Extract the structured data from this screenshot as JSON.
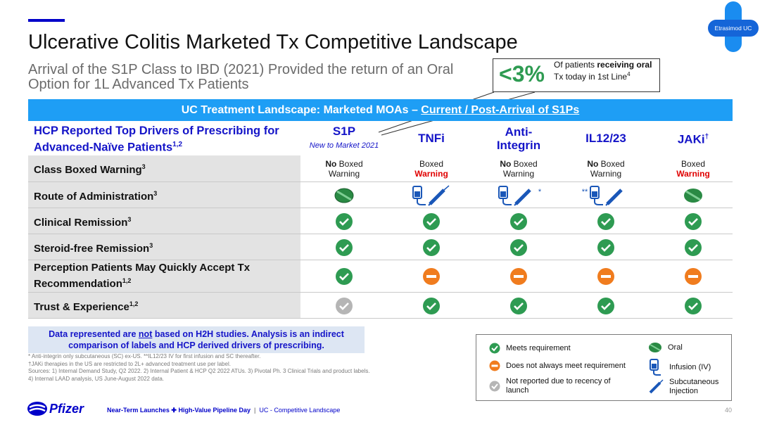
{
  "title": "Ulcerative Colitis Marketed Tx Competitive Landscape",
  "subtitle": "Arrival of the S1P Class to IBD (2021) Provided the return of an Oral Option for 1L Advanced Tx Patients",
  "brand_badge": "Etrasimod UC",
  "callout": {
    "value": "<3%",
    "text_pre": "Of patients ",
    "text_bold1": "receiving oral",
    "text_mid": " Tx today in 1st Line",
    "text_sup": "4"
  },
  "banner": {
    "text_a": "UC Treatment Landscape: Marketed MOAs – ",
    "text_b": "Current / Post-Arrival of S1Ps"
  },
  "table": {
    "header_left": "HCP Reported Top Drivers of Prescribing for Advanced-Naïve Patients",
    "header_left_sup": "1,2",
    "columns": [
      {
        "label": "S1P",
        "sub": "New to Market 2021"
      },
      {
        "label": "TNFi",
        "sub": ""
      },
      {
        "label": "Anti-Integrin",
        "sub": ""
      },
      {
        "label": "IL12/23",
        "sub": ""
      },
      {
        "label": "JAKi",
        "sub": "",
        "sup": "†"
      }
    ],
    "rows": [
      {
        "label": "Class Boxed Warning",
        "sup": "3"
      },
      {
        "label": "Route of Administration",
        "sup": "3"
      },
      {
        "label": "Clinical Remission",
        "sup": "3"
      },
      {
        "label": "Steroid-free Remission",
        "sup": "3"
      },
      {
        "label": "Perception Patients May Quickly Accept Tx Recommendation",
        "sup": "1,2"
      },
      {
        "label": "Trust & Experience",
        "sup": "1,2"
      }
    ],
    "boxed_warning": {
      "no": "No",
      "boxed": "Boxed",
      "warning": "Warning"
    },
    "route_markers": {
      "anti_integrin": "*",
      "il12_23": "**"
    }
  },
  "disclaimer": {
    "pre": "Data represented are ",
    "not": "not",
    "post": " based on H2H studies. Analysis is an indirect comparison of labels and HCP derived drivers of prescribing."
  },
  "footnotes": [
    "* Anti-integrin only subcutaneous (SC) ex-US. **IL12/23 IV for first infusion and SC thereafter.",
    "†JAKi therapies in the US are restricted to 2L+ advanced treatment use per label.",
    "Sources: 1) Internal Demand Study, Q2 2022. 2) Internal Patient & HCP Q2 2022 ATUs. 3) Pivotal Ph. 3 Clinical Trials and product labels.",
    "4) Internal LAAD analysis, US June-August 2022 data."
  ],
  "legend": {
    "meets": "Meets requirement",
    "not_always": "Does not always meet requirement",
    "not_reported": "Not reported due to recency of launch",
    "oral": "Oral",
    "infusion": "Infusion (IV)",
    "subq": "Subcutaneous Injection"
  },
  "footer": {
    "logo": "Pfizer",
    "event_a": "Near-Term Launches",
    "event_b": "High-Value Pipeline Day",
    "separator": "|",
    "section": "UC - Competitive Landscape",
    "page": "40"
  },
  "colors": {
    "accent_blue": "#0000c9",
    "banner_blue": "#1e9ef5",
    "check_green": "#2e9b52",
    "partial_orange": "#f07c1e",
    "not_reported_gray": "#b5b5b5",
    "warning_red": "#e00000"
  }
}
